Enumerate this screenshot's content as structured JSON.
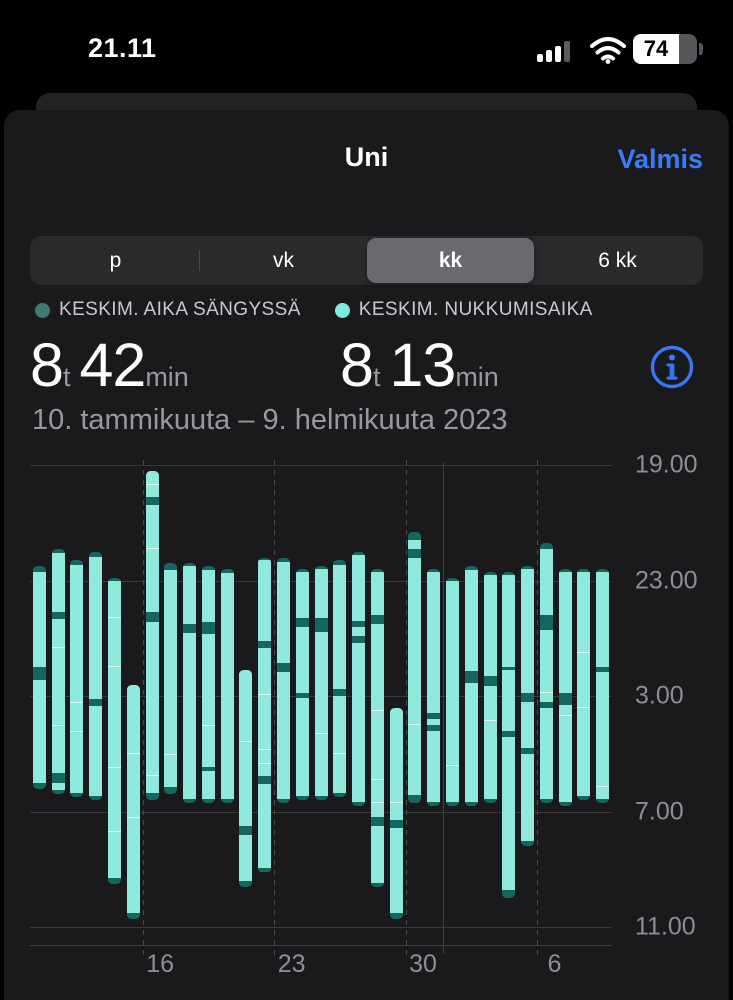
{
  "status_bar": {
    "time": "21.11",
    "battery_percent": "74"
  },
  "header": {
    "title": "Uni",
    "done_label": "Valmis",
    "accent_color": "#3a7bf7"
  },
  "segmented": {
    "options": [
      {
        "label": "p",
        "selected": false
      },
      {
        "label": "vk",
        "selected": false
      },
      {
        "label": "kk",
        "selected": true
      },
      {
        "label": "6 kk",
        "selected": false
      }
    ]
  },
  "legend": [
    {
      "label": "KESKIM. AIKA SÄNGYSSÄ",
      "color": "#3e7b72"
    },
    {
      "label": "KESKIM. NUKKUMISAIKA",
      "color": "#7debdc"
    }
  ],
  "summary": {
    "in_bed": {
      "hours": "8",
      "hours_unit": "t",
      "minutes": "42",
      "minutes_unit": "min"
    },
    "asleep": {
      "hours": "8",
      "hours_unit": "t",
      "minutes": "13",
      "minutes_unit": "min"
    }
  },
  "date_range": "10. tammikuuta – 9. helmikuuta 2023",
  "chart_data": {
    "type": "bar",
    "description": "Daily sleep sessions, one vertical bar per night; y axis is clock time from 19.00 to 11.00, bars run from bedtime down to wake time. Mint segments = asleep, dark teal segments = awake/in bed.",
    "y_axis": {
      "labels": [
        "19.00",
        "23.00",
        "3.00",
        "7.00",
        "11.00"
      ],
      "hours_from_start": [
        0,
        4,
        8,
        12,
        16
      ],
      "start_clock": "19.00"
    },
    "x_axis": {
      "labels": [
        "16",
        "23",
        "30",
        "6"
      ],
      "gridline_day_boundaries": [
        6,
        13,
        20,
        27
      ]
    },
    "month_boundary_day": 22,
    "colors": {
      "asleep": "#8fe9dd",
      "in_bed": "#17655f"
    },
    "bars": [
      {
        "start": 3.5,
        "segments": [
          [
            "b",
            0.2
          ],
          [
            "s",
            3.3
          ],
          [
            "b",
            0.45
          ],
          [
            "s",
            3.55
          ],
          [
            "b",
            0.2
          ]
        ]
      },
      {
        "start": 2.9,
        "segments": [
          [
            "b",
            0.15
          ],
          [
            "s",
            2.05
          ],
          [
            "b",
            0.25
          ],
          [
            "s",
            1.0
          ],
          [
            "s",
            2.7
          ],
          [
            "s",
            1.6
          ],
          [
            "b",
            0.35
          ],
          [
            "s",
            0.25
          ],
          [
            "b",
            0.15
          ]
        ]
      },
      {
        "start": 3.3,
        "segments": [
          [
            "b",
            0.15
          ],
          [
            "s",
            4.8
          ],
          [
            "s",
            1.0
          ],
          [
            "s",
            2.1
          ],
          [
            "b",
            0.15
          ]
        ]
      },
      {
        "start": 3.0,
        "segments": [
          [
            "b",
            0.2
          ],
          [
            "s",
            4.9
          ],
          [
            "b",
            0.25
          ],
          [
            "s",
            3.1
          ],
          [
            "b",
            0.15
          ]
        ]
      },
      {
        "start": 3.9,
        "segments": [
          [
            "b",
            0.1
          ],
          [
            "s",
            1.3
          ],
          [
            "s",
            1.7
          ],
          [
            "s",
            3.5
          ],
          [
            "s",
            2.2
          ],
          [
            "s",
            1.6
          ],
          [
            "b",
            0.2
          ]
        ]
      },
      {
        "start": 7.6,
        "segments": [
          [
            "s",
            2.4
          ],
          [
            "s",
            2.2
          ],
          [
            "s",
            3.3
          ],
          [
            "b",
            0.2
          ]
        ]
      },
      {
        "start": 0.2,
        "segments": [
          [
            "s",
            0.5
          ],
          [
            "s",
            0.4
          ],
          [
            "b",
            0.3
          ],
          [
            "s",
            1.5
          ],
          [
            "s",
            2.2
          ],
          [
            "b",
            0.35
          ],
          [
            "s",
            5.3
          ],
          [
            "s",
            0.6
          ],
          [
            "b",
            0.25
          ]
        ]
      },
      {
        "start": 3.4,
        "segments": [
          [
            "b",
            0.25
          ],
          [
            "s",
            6.4
          ],
          [
            "s",
            1.1
          ],
          [
            "b",
            0.25
          ]
        ]
      },
      {
        "start": 3.4,
        "segments": [
          [
            "b",
            0.1
          ],
          [
            "s",
            2.0
          ],
          [
            "b",
            0.3
          ],
          [
            "s",
            5.75
          ],
          [
            "b",
            0.15
          ]
        ]
      },
      {
        "start": 3.5,
        "segments": [
          [
            "b",
            0.15
          ],
          [
            "s",
            1.8
          ],
          [
            "b",
            0.4
          ],
          [
            "s",
            3.2
          ],
          [
            "s",
            1.4
          ],
          [
            "b",
            0.15
          ],
          [
            "s",
            0.95
          ],
          [
            "b",
            0.15
          ]
        ]
      },
      {
        "start": 3.6,
        "segments": [
          [
            "b",
            0.15
          ],
          [
            "s",
            7.8
          ],
          [
            "b",
            0.15
          ]
        ]
      },
      {
        "start": 7.1,
        "segments": [
          [
            "s",
            2.5
          ],
          [
            "s",
            2.9
          ],
          [
            "b",
            0.3
          ],
          [
            "s",
            1.6
          ],
          [
            "b",
            0.2
          ]
        ]
      },
      {
        "start": 3.2,
        "segments": [
          [
            "b",
            0.1
          ],
          [
            "s",
            2.8
          ],
          [
            "b",
            0.25
          ],
          [
            "s",
            1.6
          ],
          [
            "s",
            1.9
          ],
          [
            "s",
            0.5
          ],
          [
            "s",
            0.4
          ],
          [
            "b",
            0.3
          ],
          [
            "s",
            2.9
          ],
          [
            "b",
            0.15
          ]
        ]
      },
      {
        "start": 3.2,
        "segments": [
          [
            "b",
            0.15
          ],
          [
            "s",
            3.5
          ],
          [
            "b",
            0.3
          ],
          [
            "s",
            4.4
          ],
          [
            "b",
            0.15
          ]
        ]
      },
      {
        "start": 3.6,
        "segments": [
          [
            "b",
            0.1
          ],
          [
            "s",
            1.6
          ],
          [
            "b",
            0.3
          ],
          [
            "s",
            2.3
          ],
          [
            "b",
            0.15
          ],
          [
            "s",
            3.4
          ],
          [
            "b",
            0.15
          ]
        ]
      },
      {
        "start": 3.5,
        "segments": [
          [
            "b",
            0.1
          ],
          [
            "s",
            1.7
          ],
          [
            "b",
            0.5
          ],
          [
            "s",
            3.5
          ],
          [
            "s",
            2.15
          ],
          [
            "b",
            0.15
          ]
        ]
      },
      {
        "start": 3.3,
        "segments": [
          [
            "b",
            0.15
          ],
          [
            "s",
            4.3
          ],
          [
            "b",
            0.25
          ],
          [
            "s",
            2.0
          ],
          [
            "s",
            1.35
          ],
          [
            "b",
            0.15
          ]
        ]
      },
      {
        "start": 3.0,
        "segments": [
          [
            "b",
            0.1
          ],
          [
            "s",
            2.3
          ],
          [
            "b",
            0.2
          ],
          [
            "s",
            0.3
          ],
          [
            "b",
            0.25
          ],
          [
            "s",
            5.5
          ],
          [
            "b",
            0.15
          ]
        ]
      },
      {
        "start": 3.6,
        "segments": [
          [
            "b",
            0.1
          ],
          [
            "s",
            1.5
          ],
          [
            "b",
            0.3
          ],
          [
            "s",
            3.0
          ],
          [
            "s",
            2.4
          ],
          [
            "s",
            0.8
          ],
          [
            "s",
            0.5
          ],
          [
            "b",
            0.3
          ],
          [
            "s",
            1.95
          ],
          [
            "b",
            0.15
          ]
        ]
      },
      {
        "start": 8.4,
        "segments": [
          [
            "s",
            3.3
          ],
          [
            "s",
            0.6
          ],
          [
            "b",
            0.25
          ],
          [
            "s",
            2.95
          ],
          [
            "b",
            0.2
          ]
        ]
      },
      {
        "start": 2.3,
        "segments": [
          [
            "b",
            0.3
          ],
          [
            "s",
            0.3
          ],
          [
            "b",
            0.3
          ],
          [
            "s",
            5.8
          ],
          [
            "s",
            2.4
          ],
          [
            "b",
            0.3
          ]
        ]
      },
      {
        "start": 3.6,
        "segments": [
          [
            "b",
            0.1
          ],
          [
            "s",
            4.9
          ],
          [
            "b",
            0.2
          ],
          [
            "s",
            0.2
          ],
          [
            "b",
            0.2
          ],
          [
            "s",
            2.45
          ],
          [
            "b",
            0.15
          ]
        ]
      },
      {
        "start": 3.9,
        "segments": [
          [
            "b",
            0.1
          ],
          [
            "s",
            6.4
          ],
          [
            "s",
            1.25
          ],
          [
            "b",
            0.15
          ]
        ]
      },
      {
        "start": 3.5,
        "segments": [
          [
            "b",
            0.15
          ],
          [
            "s",
            3.5
          ],
          [
            "b",
            0.4
          ],
          [
            "s",
            4.1
          ],
          [
            "b",
            0.15
          ]
        ]
      },
      {
        "start": 3.7,
        "segments": [
          [
            "b",
            0.1
          ],
          [
            "s",
            3.5
          ],
          [
            "b",
            0.35
          ],
          [
            "s",
            1.2
          ],
          [
            "s",
            2.7
          ],
          [
            "b",
            0.15
          ]
        ]
      },
      {
        "start": 3.7,
        "segments": [
          [
            "b",
            0.1
          ],
          [
            "s",
            3.2
          ],
          [
            "b",
            0.1
          ],
          [
            "s",
            2.1
          ],
          [
            "b",
            0.2
          ],
          [
            "s",
            5.3
          ],
          [
            "b",
            0.3
          ]
        ]
      },
      {
        "start": 3.5,
        "segments": [
          [
            "b",
            0.1
          ],
          [
            "s",
            4.3
          ],
          [
            "b",
            0.3
          ],
          [
            "s",
            1.6
          ],
          [
            "b",
            0.2
          ],
          [
            "s",
            3.0
          ],
          [
            "b",
            0.2
          ]
        ]
      },
      {
        "start": 2.7,
        "segments": [
          [
            "b",
            0.2
          ],
          [
            "s",
            2.3
          ],
          [
            "b",
            0.5
          ],
          [
            "s",
            2.2
          ],
          [
            "s",
            0.3
          ],
          [
            "b",
            0.2
          ],
          [
            "s",
            3.15
          ],
          [
            "b",
            0.15
          ]
        ]
      },
      {
        "start": 3.6,
        "segments": [
          [
            "b",
            0.1
          ],
          [
            "s",
            4.2
          ],
          [
            "b",
            0.4
          ],
          [
            "s",
            0.4
          ],
          [
            "s",
            2.95
          ],
          [
            "b",
            0.15
          ]
        ]
      },
      {
        "start": 3.6,
        "segments": [
          [
            "b",
            0.1
          ],
          [
            "s",
            2.8
          ],
          [
            "s",
            1.9
          ],
          [
            "s",
            3.05
          ],
          [
            "b",
            0.15
          ]
        ]
      },
      {
        "start": 3.6,
        "segments": [
          [
            "b",
            0.1
          ],
          [
            "s",
            3.3
          ],
          [
            "b",
            0.15
          ],
          [
            "s",
            4.0
          ],
          [
            "s",
            0.4
          ],
          [
            "b",
            0.15
          ]
        ]
      }
    ]
  }
}
